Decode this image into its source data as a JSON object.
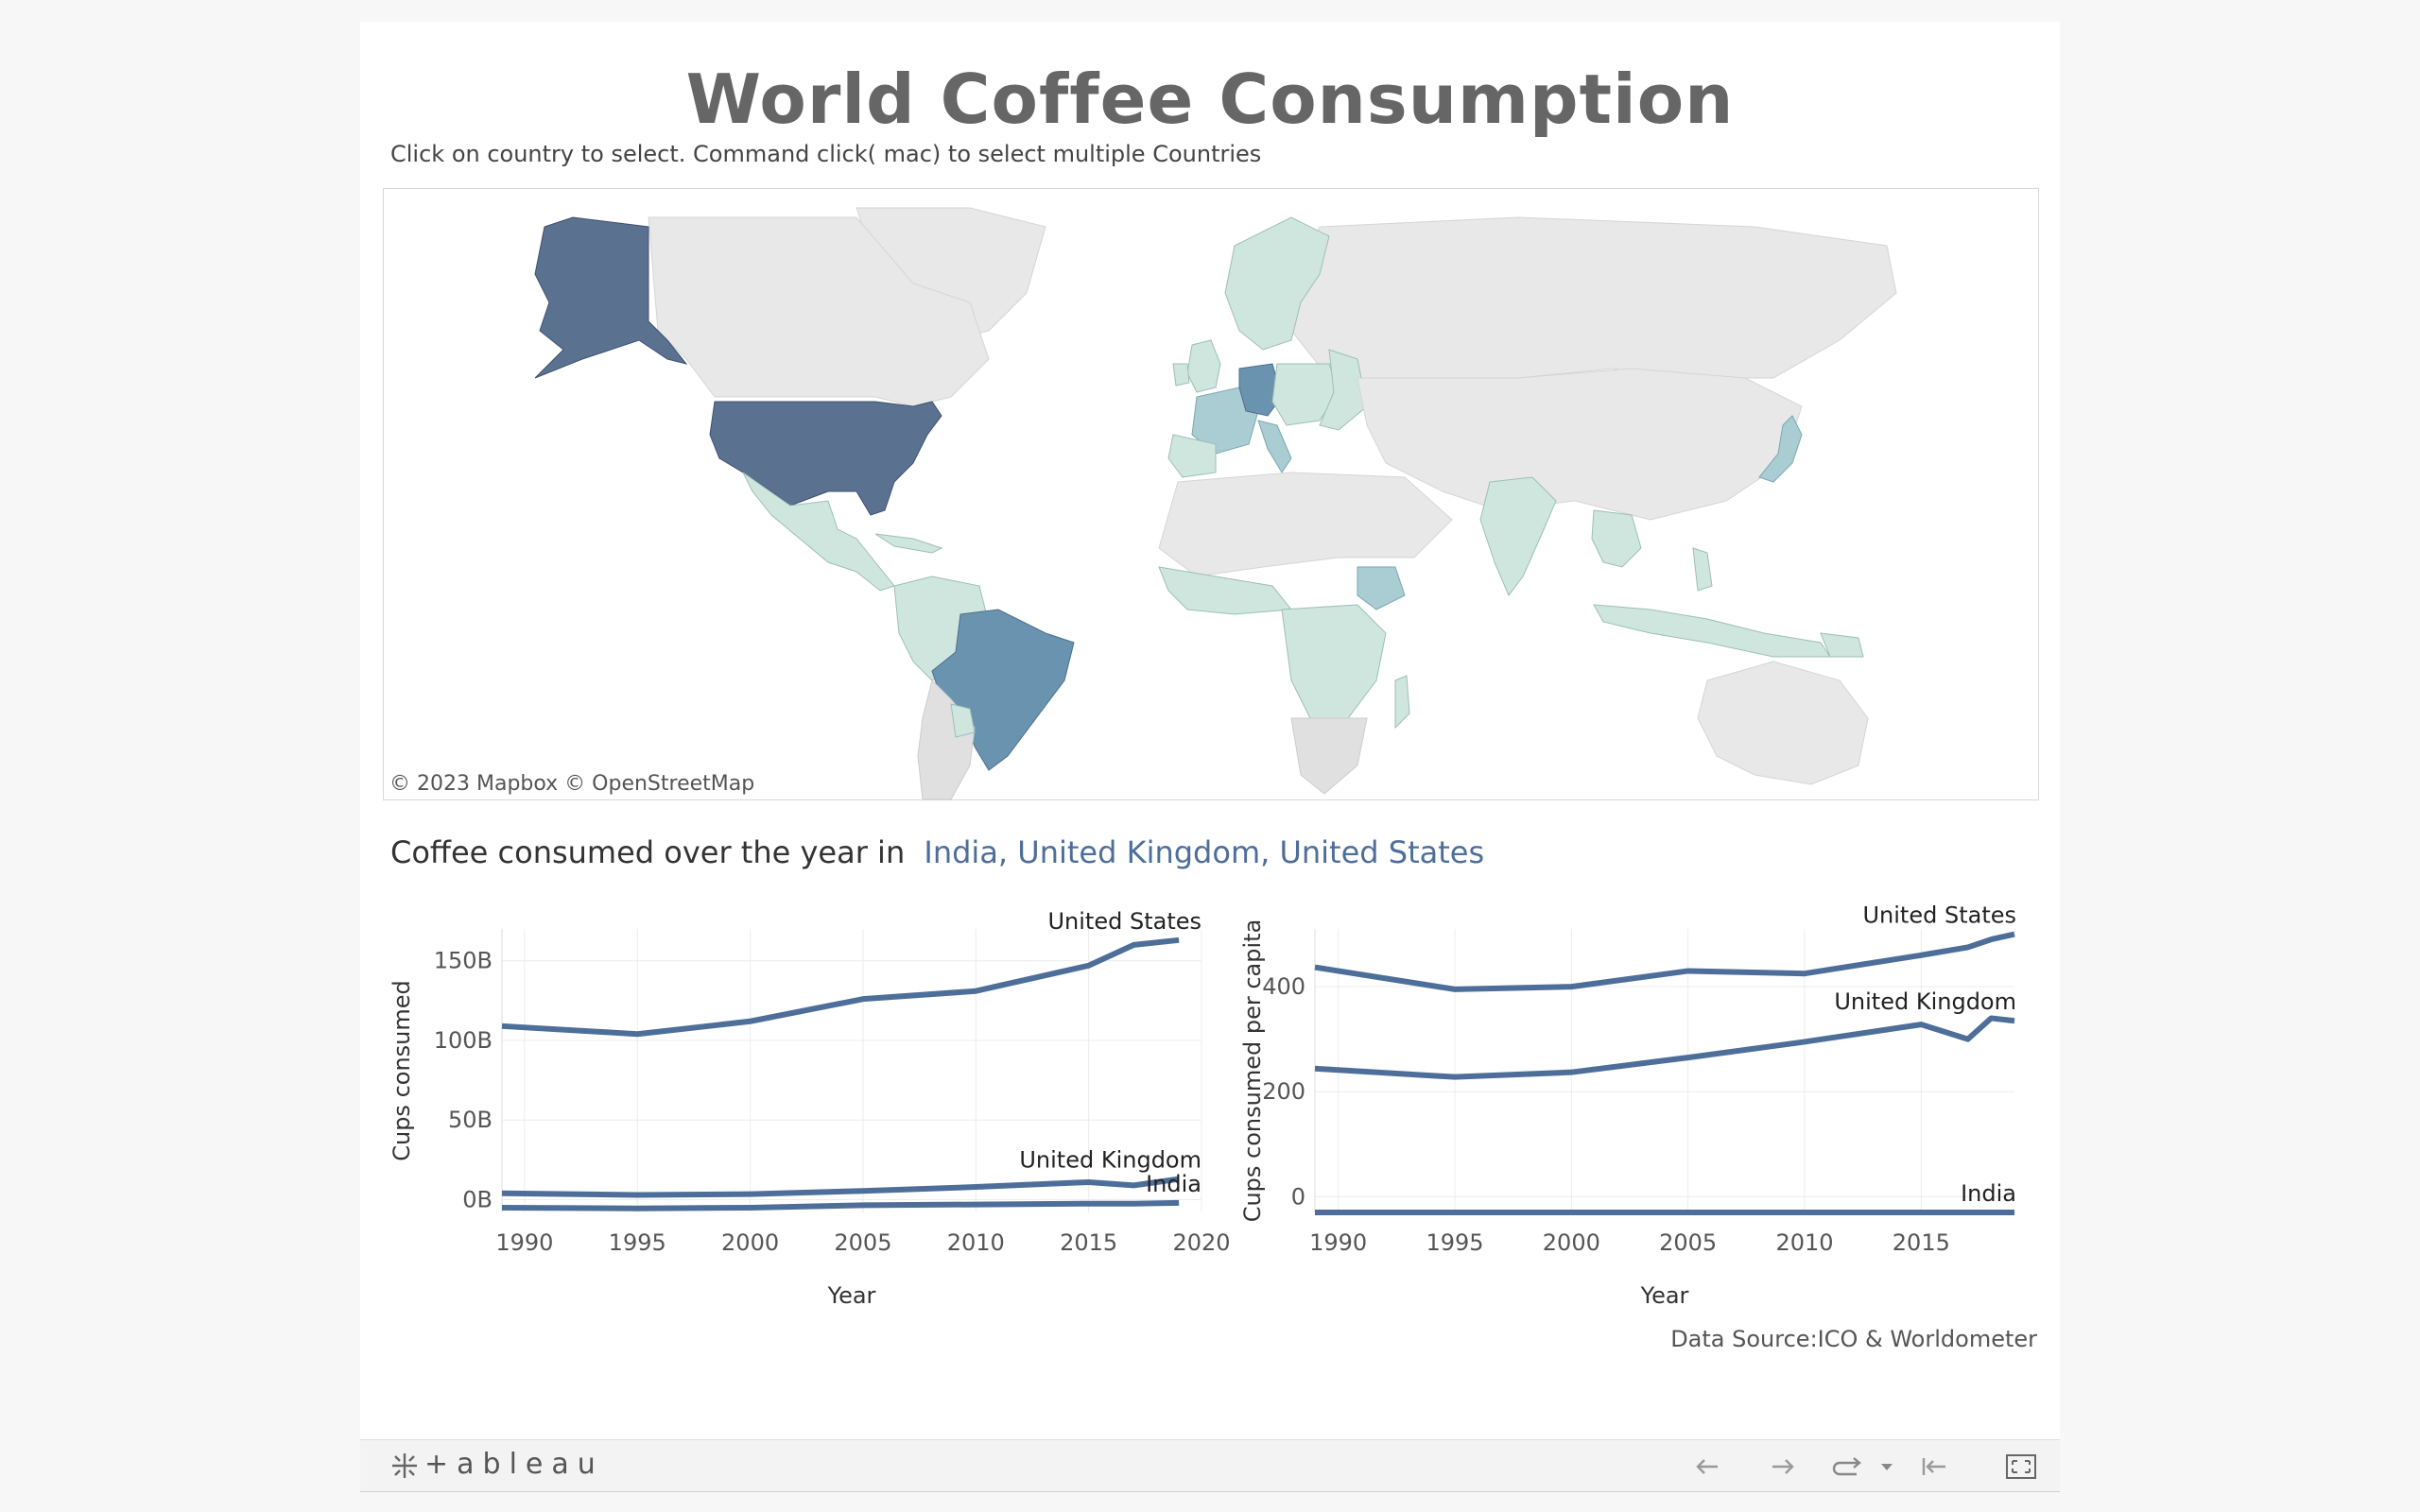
{
  "title": "World Coffee Consumption",
  "instruction": "Click on country to select. Command click( mac)  to select multiple Countries",
  "map": {
    "attribution": "© 2023 Mapbox  © OpenStreetMap",
    "colors": {
      "land": "#e8e8e8",
      "land_border": "#c9c9c9",
      "low": "#cfe6df",
      "mid": "#a9cdd3",
      "high": "#6a93b0",
      "highest": "#5a7190",
      "ocean": "#ffffff"
    }
  },
  "subtitle": {
    "prefix": "Coffee consumed over the year in",
    "selection": "India, United Kingdom, United States"
  },
  "line_color": "#4e6e9a",
  "chart_data": [
    {
      "type": "line",
      "xlabel": "Year",
      "ylabel": "Cups consumed",
      "x_ticks": [
        "1990",
        "1995",
        "2000",
        "2005",
        "2010",
        "2015",
        "2020"
      ],
      "y_ticks": [
        "150B",
        "100B",
        "50B",
        "0B"
      ],
      "y_tick_values": [
        150,
        100,
        50,
        0
      ],
      "xlim": [
        1989,
        2020
      ],
      "ylim": [
        -8,
        170
      ],
      "x": [
        1989,
        1995,
        2000,
        2005,
        2010,
        2015,
        2017,
        2019
      ],
      "series": [
        {
          "name": "United States",
          "values": [
            109,
            104,
            112,
            126,
            131,
            147,
            160,
            163
          ]
        },
        {
          "name": "United Kingdom",
          "values": [
            4,
            3,
            3.5,
            5.5,
            8,
            11,
            9,
            13
          ]
        },
        {
          "name": "India",
          "values": [
            -5,
            -5.5,
            -5,
            -3.5,
            -3,
            -2.5,
            -2.5,
            -2
          ]
        }
      ]
    },
    {
      "type": "line",
      "xlabel": "Year",
      "ylabel": "Cups consumed per capita",
      "x_ticks": [
        "1990",
        "1995",
        "2000",
        "2005",
        "2010",
        "2015"
      ],
      "y_ticks": [
        "400",
        "200",
        "0"
      ],
      "y_tick_values": [
        400,
        200,
        0
      ],
      "xlim": [
        1989,
        2019
      ],
      "ylim": [
        -30,
        510
      ],
      "x": [
        1989,
        1995,
        2000,
        2005,
        2010,
        2015,
        2017,
        2018,
        2019
      ],
      "series": [
        {
          "name": "United States",
          "values": [
            437,
            395,
            400,
            430,
            425,
            460,
            475,
            490,
            500
          ]
        },
        {
          "name": "United Kingdom",
          "values": [
            244,
            228,
            237,
            265,
            295,
            328,
            300,
            340,
            335
          ]
        },
        {
          "name": "India",
          "values": [
            -30,
            -30,
            -30,
            -30,
            -30,
            -30,
            -30,
            -30,
            -30
          ]
        }
      ]
    }
  ],
  "datasource": "Data Source:ICO & Worldometer",
  "footer": {
    "brand": "+ableau"
  }
}
